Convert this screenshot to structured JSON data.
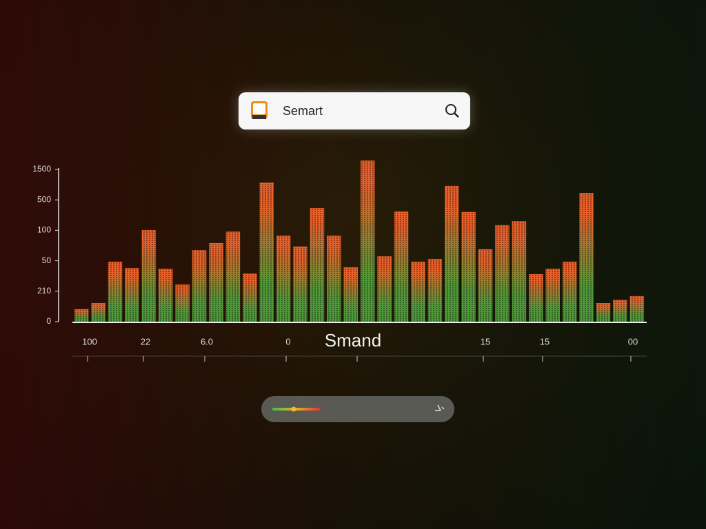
{
  "search": {
    "query": "Semart"
  },
  "chart_data": {
    "type": "bar",
    "title": "Smand",
    "categories": [
      null,
      null,
      null,
      null,
      null,
      null,
      null,
      null,
      null,
      null,
      null,
      null,
      null,
      null,
      null,
      null,
      null,
      null,
      null,
      null,
      null,
      null,
      null,
      null,
      null,
      null,
      null,
      null,
      null,
      null,
      null,
      null,
      null,
      null
    ],
    "values": [
      0.41,
      0.61,
      1.97,
      1.76,
      3.01,
      1.74,
      1.22,
      2.35,
      2.58,
      2.96,
      1.58,
      4.57,
      2.83,
      2.47,
      3.73,
      2.83,
      1.79,
      5.29,
      2.15,
      3.62,
      1.97,
      2.06,
      4.46,
      3.6,
      2.38,
      3.17,
      3.3,
      1.56,
      1.74,
      1.97,
      4.23,
      0.61,
      0.72,
      0.84
    ],
    "colors": {
      "low": "#4f9a38",
      "high": "#e8602a"
    },
    "ylim": [
      0,
      5.3
    ],
    "yticks": [
      0,
      {
        "value": 1,
        "label": "210"
      },
      {
        "value": 2,
        "label": "50"
      },
      {
        "value": 3,
        "label": "100"
      },
      {
        "value": 4,
        "label": "500"
      },
      {
        "value": 5,
        "label": "1500"
      }
    ],
    "x_labels": [
      "100",
      "22",
      "6.0",
      "0",
      "15",
      "15",
      "00"
    ]
  }
}
